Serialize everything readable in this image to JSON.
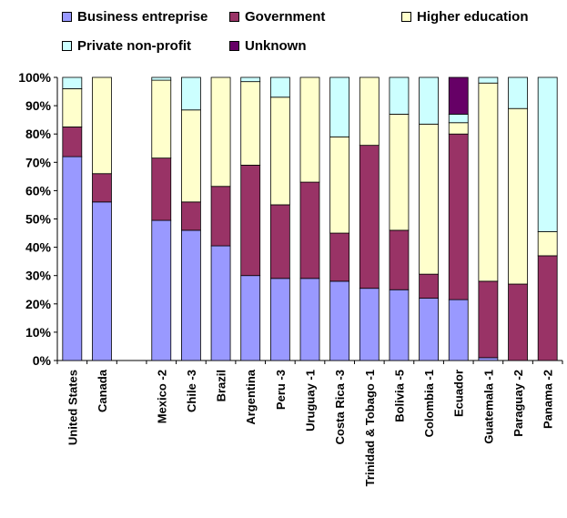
{
  "chart_data": {
    "type": "bar",
    "stacked": true,
    "percent": true,
    "categories": [
      "United States",
      "Canada",
      "",
      "Mexico -2",
      "Chile -3",
      "Brazil",
      "Argentina",
      "Peru -3",
      "Uruguay -1",
      "Costa Rica -3",
      "Trinidad & Tobago -1",
      "Bolivia -5",
      "Colombia -1",
      "Ecuador",
      "Guatemala -1",
      "Paraguay -2",
      "Panama -2"
    ],
    "series": [
      {
        "name": "Business entreprise",
        "color": "#9999ff",
        "values": [
          72,
          56,
          null,
          49.5,
          46,
          40.5,
          30,
          29,
          29,
          28,
          25.5,
          25,
          22,
          21.5,
          1,
          0,
          0
        ]
      },
      {
        "name": "Government",
        "color": "#993366",
        "values": [
          10.5,
          10,
          null,
          22,
          10,
          21,
          39,
          26,
          34,
          17,
          50.5,
          21,
          8.5,
          58.5,
          27,
          27,
          37
        ]
      },
      {
        "name": "Higher education",
        "color": "#ffffcc",
        "values": [
          13.5,
          34,
          null,
          27.5,
          32.5,
          38.5,
          29.5,
          38,
          37,
          34,
          24,
          41,
          53,
          4,
          70,
          62,
          8.5
        ]
      },
      {
        "name": "Private non-profit",
        "color": "#ccffff",
        "values": [
          4,
          0,
          null,
          1,
          11.5,
          0,
          1.5,
          7,
          0,
          21,
          0,
          13,
          16.5,
          3,
          2,
          11,
          54.5
        ]
      },
      {
        "name": "Unknown",
        "color": "#660066",
        "values": [
          0,
          0,
          null,
          0,
          0,
          0,
          0,
          0,
          0,
          0,
          0,
          0,
          0,
          13,
          0,
          0,
          0
        ]
      }
    ],
    "ylim": [
      0,
      100
    ],
    "yticks": [
      "0%",
      "10%",
      "20%",
      "30%",
      "40%",
      "50%",
      "60%",
      "70%",
      "80%",
      "90%",
      "100%"
    ],
    "grid": false,
    "legend_position": "top"
  }
}
